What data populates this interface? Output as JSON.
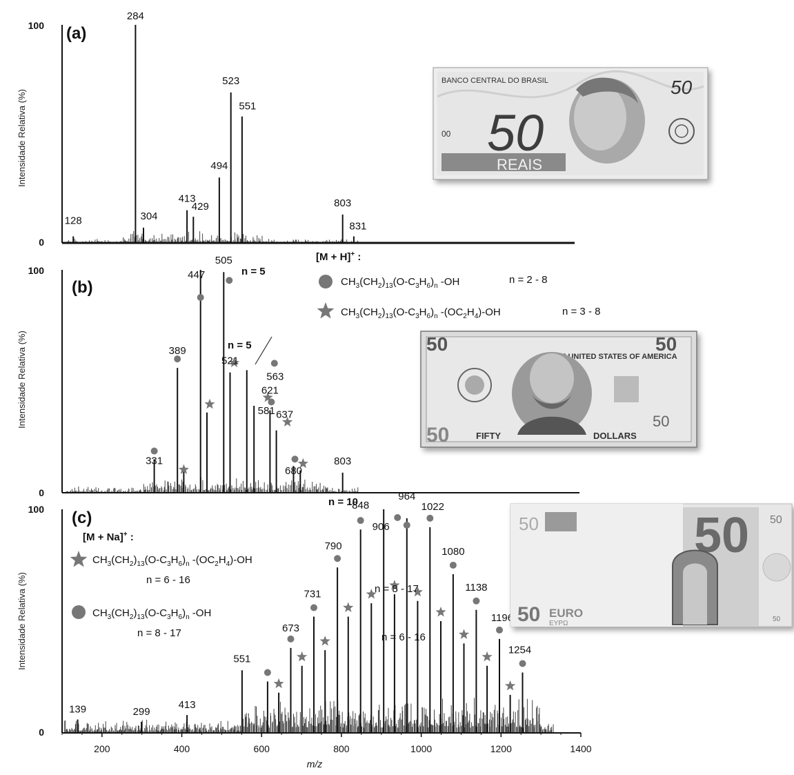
{
  "chart_data": [
    {
      "type": "bar",
      "panel": "(a)",
      "ylabel": "Intensidade Relativa (%)",
      "ylim": [
        0,
        100
      ],
      "yticks": [
        "0",
        "100"
      ],
      "peaks": [
        {
          "mz": 128,
          "value": 3,
          "label": "128"
        },
        {
          "mz": 284,
          "value": 100,
          "label": "284"
        },
        {
          "mz": 304,
          "value": 7,
          "label": "304"
        },
        {
          "mz": 413,
          "value": 15,
          "label": "413"
        },
        {
          "mz": 429,
          "value": 12,
          "label": "429"
        },
        {
          "mz": 494,
          "value": 30,
          "label": "494"
        },
        {
          "mz": 523,
          "value": 69,
          "label": "523"
        },
        {
          "mz": 551,
          "value": 58,
          "label": "551"
        },
        {
          "mz": 803,
          "value": 13,
          "label": "803"
        },
        {
          "mz": 831,
          "value": 3,
          "label": "831"
        }
      ]
    },
    {
      "type": "bar",
      "panel": "(b)",
      "ylabel": "Intensidade Relativa (%)",
      "ylim": [
        0,
        100
      ],
      "yticks": [
        "0",
        "100"
      ],
      "peaks": [
        {
          "mz": 331,
          "value": 15,
          "label": "331",
          "marker": "circle"
        },
        {
          "mz": 389,
          "value": 56,
          "label": "389",
          "marker": "circle"
        },
        {
          "mz": 405,
          "value": 11,
          "label": "",
          "marker": "star"
        },
        {
          "mz": 447,
          "value": 100,
          "label": "447",
          "marker": "circle"
        },
        {
          "mz": 463,
          "value": 36,
          "label": "",
          "marker": "star"
        },
        {
          "mz": 505,
          "value": 99,
          "label": "505",
          "marker": "circle"
        },
        {
          "mz": 521,
          "value": 54,
          "label": "521",
          "marker": "star"
        },
        {
          "mz": 563,
          "value": 55,
          "label": "563",
          "marker": "circle"
        },
        {
          "mz": 581,
          "value": 39,
          "label": "581",
          "marker": "star"
        },
        {
          "mz": 621,
          "value": 37,
          "label": "621",
          "marker": "circle"
        },
        {
          "mz": 637,
          "value": 28,
          "label": "637",
          "marker": "star"
        },
        {
          "mz": 680,
          "value": 12,
          "label": "680",
          "marker": "circle"
        },
        {
          "mz": 697,
          "value": 10,
          "label": "",
          "marker": "star"
        },
        {
          "mz": 803,
          "value": 9,
          "label": "803",
          "marker": "none"
        }
      ],
      "annotations": [
        "n = 5",
        "n = 5"
      ],
      "legend": {
        "title": "[M + H]",
        "title_sup": "+",
        "items": [
          {
            "marker": "circle",
            "formula_parts": [
              "CH",
              "3",
              "(CH",
              "2",
              ")",
              "13",
              "(O-C",
              "3",
              "H",
              "6",
              ")",
              "n",
              " -OH"
            ],
            "range": "n = 2 - 8"
          },
          {
            "marker": "star",
            "formula_parts": [
              "CH",
              "3",
              "(CH",
              "2",
              ")",
              "13",
              "(O-C",
              "3",
              "H",
              "6",
              ")",
              "n",
              " -(OC",
              "2",
              "H",
              "4",
              ")-OH"
            ],
            "range": "n = 3 - 8"
          }
        ]
      }
    },
    {
      "type": "bar",
      "panel": "(c)",
      "ylabel": "Intensidade Relativa (%)",
      "xlabel": "m/z",
      "xlim": [
        100,
        1400
      ],
      "xticks": [
        "200",
        "400",
        "600",
        "800",
        "1000",
        "1200",
        "1400"
      ],
      "ylim": [
        0,
        100
      ],
      "yticks": [
        "0",
        "100"
      ],
      "peaks": [
        {
          "mz": 139,
          "value": 6,
          "label": "139",
          "marker": "none"
        },
        {
          "mz": 299,
          "value": 5,
          "label": "299",
          "marker": "none"
        },
        {
          "mz": 413,
          "value": 8,
          "label": "413",
          "marker": "none"
        },
        {
          "mz": 551,
          "value": 28,
          "label": "551",
          "marker": "none"
        },
        {
          "mz": 615,
          "value": 23,
          "label": "",
          "marker": "circle"
        },
        {
          "mz": 643,
          "value": 18,
          "label": "",
          "marker": "star"
        },
        {
          "mz": 673,
          "value": 38,
          "label": "673",
          "marker": "circle"
        },
        {
          "mz": 701,
          "value": 30,
          "label": "",
          "marker": "star"
        },
        {
          "mz": 731,
          "value": 52,
          "label": "731",
          "marker": "circle"
        },
        {
          "mz": 759,
          "value": 37,
          "label": "",
          "marker": "star"
        },
        {
          "mz": 790,
          "value": 74,
          "label": "790",
          "marker": "circle"
        },
        {
          "mz": 817,
          "value": 52,
          "label": "",
          "marker": "star"
        },
        {
          "mz": 848,
          "value": 91,
          "label": "848",
          "marker": "circle"
        },
        {
          "mz": 875,
          "value": 58,
          "label": "",
          "marker": "star"
        },
        {
          "mz": 906,
          "value": 100,
          "label": "906",
          "marker": "circle"
        },
        {
          "mz": 933,
          "value": 62,
          "label": "",
          "marker": "star"
        },
        {
          "mz": 964,
          "value": 96,
          "label": "964",
          "marker": "circle"
        },
        {
          "mz": 991,
          "value": 59,
          "label": "",
          "marker": "star"
        },
        {
          "mz": 1022,
          "value": 92,
          "label": "1022",
          "marker": "circle"
        },
        {
          "mz": 1049,
          "value": 50,
          "label": "",
          "marker": "star"
        },
        {
          "mz": 1080,
          "value": 71,
          "label": "1080",
          "marker": "circle"
        },
        {
          "mz": 1107,
          "value": 40,
          "label": "",
          "marker": "star"
        },
        {
          "mz": 1138,
          "value": 55,
          "label": "1138",
          "marker": "circle"
        },
        {
          "mz": 1165,
          "value": 30,
          "label": "",
          "marker": "star"
        },
        {
          "mz": 1196,
          "value": 42,
          "label": "1196",
          "marker": "circle"
        },
        {
          "mz": 1223,
          "value": 17,
          "label": "",
          "marker": "star"
        },
        {
          "mz": 1254,
          "value": 27,
          "label": "1254",
          "marker": "circle"
        }
      ],
      "annotations": [
        "n = 10",
        "n = 8 - 17",
        "n = 6 - 16"
      ],
      "legend": {
        "title": "[M + Na]",
        "title_sup": "+",
        "items": [
          {
            "marker": "star",
            "formula_parts": [
              "CH",
              "3",
              "(CH",
              "2",
              ")",
              "13",
              "(O-C",
              "3",
              "H",
              "6",
              ")",
              "n",
              " -(OC",
              "2",
              "H",
              "4",
              ")-OH"
            ],
            "range": "n = 6 - 16"
          },
          {
            "marker": "circle",
            "formula_parts": [
              "CH",
              "3",
              "(CH",
              "2",
              ")",
              "13",
              "(O-C",
              "3",
              "H",
              "6",
              ")",
              "n",
              " -OH"
            ],
            "range": "n = 8 - 17"
          }
        ]
      }
    }
  ],
  "banknotes": [
    {
      "name": "brazilian-50-reais-note",
      "texts": [
        "BANCO CENTRAL DO BRASIL",
        "50",
        "50",
        "REAIS"
      ]
    },
    {
      "name": "us-50-dollar-note",
      "texts": [
        "THE UNITED STATES OF AMERICA",
        "FIFTY",
        "DOLLARS",
        "50"
      ]
    },
    {
      "name": "euro-50-note",
      "texts": [
        "50",
        "50",
        "EURO",
        "ΕΥΡΩ"
      ]
    }
  ],
  "colors": {
    "ink": "#111111",
    "marker": "#777777",
    "axis": "#111111"
  }
}
